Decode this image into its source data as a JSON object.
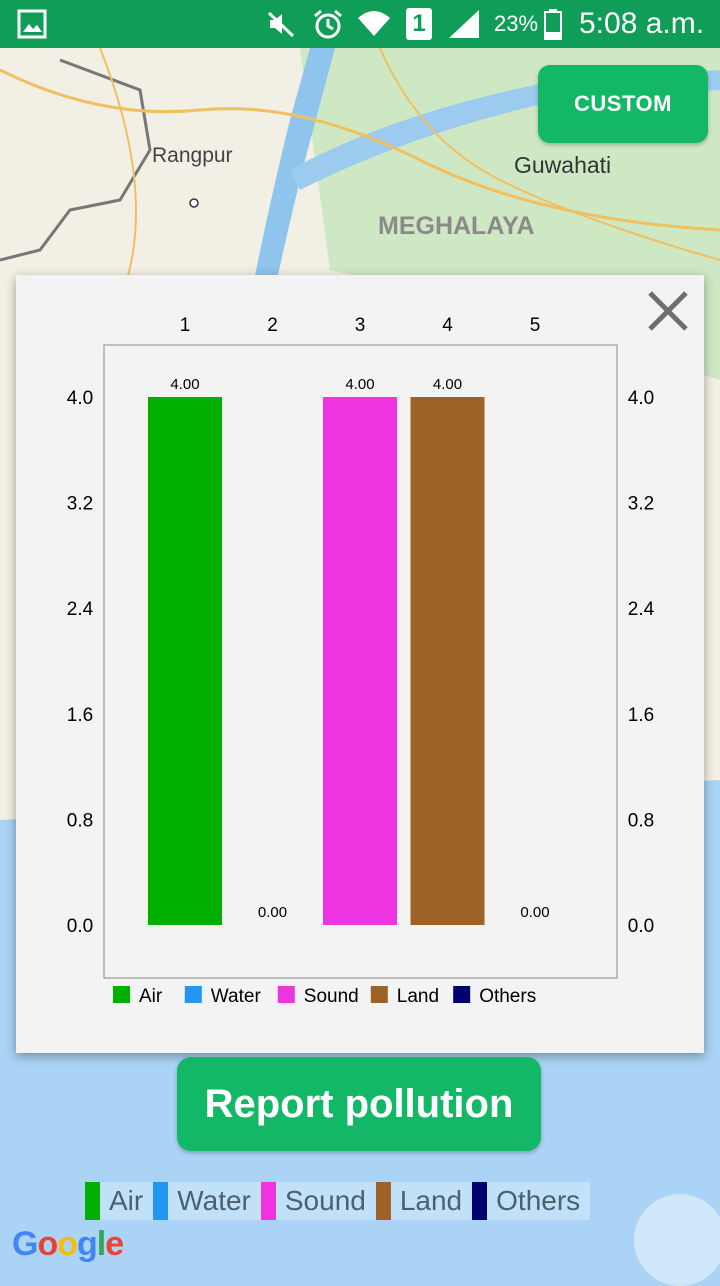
{
  "status_bar": {
    "battery": "23%",
    "time": "5:08 a.m.",
    "sim_slot": "1",
    "icons": [
      "gallery-icon",
      "mute-icon",
      "alarm-icon",
      "wifi-icon",
      "sim-icon",
      "signal-icon",
      "battery-icon"
    ]
  },
  "map": {
    "labels": [
      "Rangpur",
      "Guwahati",
      "MEGHALAYA"
    ],
    "custom_label": "CUSTOM",
    "attribution": "Google"
  },
  "dialog": {
    "close_icon": "close-icon"
  },
  "chart_data": {
    "type": "bar",
    "categories": [
      "1",
      "2",
      "3",
      "4",
      "5"
    ],
    "values": [
      4.0,
      0.0,
      4.0,
      4.0,
      0.0
    ],
    "value_labels": [
      "4.00",
      "0.00",
      "4.00",
      "4.00",
      "0.00"
    ],
    "colors": [
      "#00b000",
      "#2196f3",
      "#ee33e0",
      "#9c6226",
      "#000070"
    ],
    "y_ticks": [
      "0.0",
      "0.8",
      "1.6",
      "2.4",
      "3.2",
      "4.0"
    ],
    "ylim": [
      0,
      4.0
    ],
    "legend": [
      {
        "label": "Air",
        "color": "#00b000"
      },
      {
        "label": "Water",
        "color": "#2196f3"
      },
      {
        "label": "Sound",
        "color": "#ee33e0"
      },
      {
        "label": "Land",
        "color": "#9c6226"
      },
      {
        "label": "Others",
        "color": "#000070"
      }
    ],
    "legend_position": "bottom-left",
    "grid": false
  },
  "report_button": {
    "label": "Report pollution"
  },
  "map_legend": [
    {
      "label": "Air",
      "color": "#00b000"
    },
    {
      "label": "Water",
      "color": "#2196f3"
    },
    {
      "label": "Sound",
      "color": "#ee33e0"
    },
    {
      "label": "Land",
      "color": "#9c6226"
    },
    {
      "label": "Others",
      "color": "#000070"
    }
  ]
}
